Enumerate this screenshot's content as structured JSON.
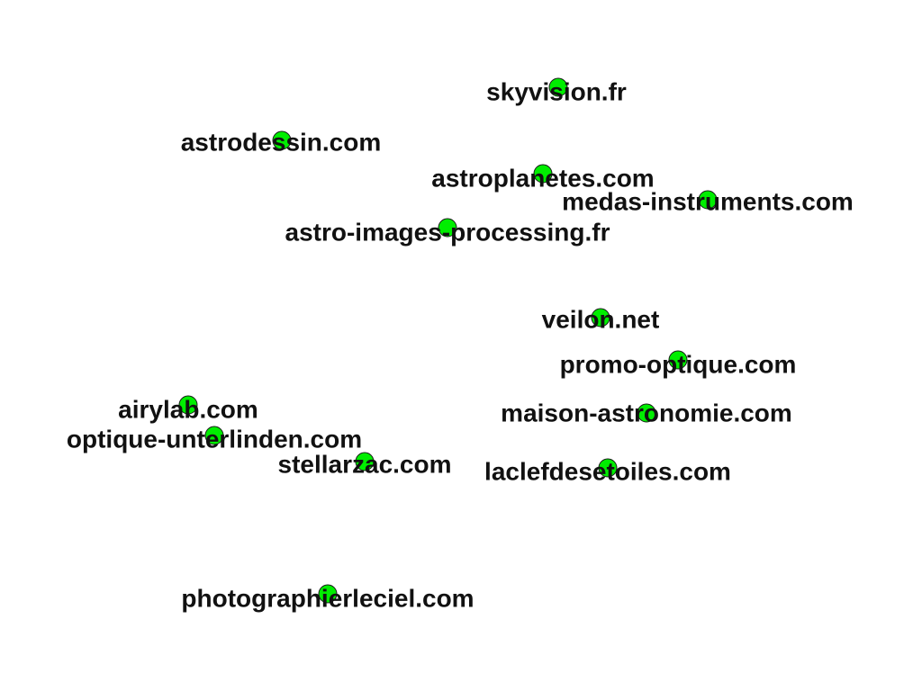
{
  "nodes": [
    {
      "id": "skyvision",
      "label": "skyvision.fr"
    },
    {
      "id": "astrodessin",
      "label": "astrodessin.com"
    },
    {
      "id": "astroplanetes",
      "label": "astroplanetes.com"
    },
    {
      "id": "medas",
      "label": "medas-instruments.com"
    },
    {
      "id": "astro-images",
      "label": "astro-images-processing.fr"
    },
    {
      "id": "veilon",
      "label": "veilon.net"
    },
    {
      "id": "promo-optique",
      "label": "promo-optique.com"
    },
    {
      "id": "airylab",
      "label": "airylab.com"
    },
    {
      "id": "maison-astronomie",
      "label": "maison-astronomie.com"
    },
    {
      "id": "optique-unterlinden",
      "label": "optique-unterlinden.com"
    },
    {
      "id": "stellarzac",
      "label": "stellarzac.com"
    },
    {
      "id": "laclefdesetoiles",
      "label": "laclefdesetoiles.com"
    },
    {
      "id": "photographierleciel",
      "label": "photographierleciel.com"
    }
  ],
  "colors": {
    "node_fill": "#00ee00",
    "node_stroke": "#1a1a1a",
    "label": "#111111",
    "background": "#ffffff"
  }
}
